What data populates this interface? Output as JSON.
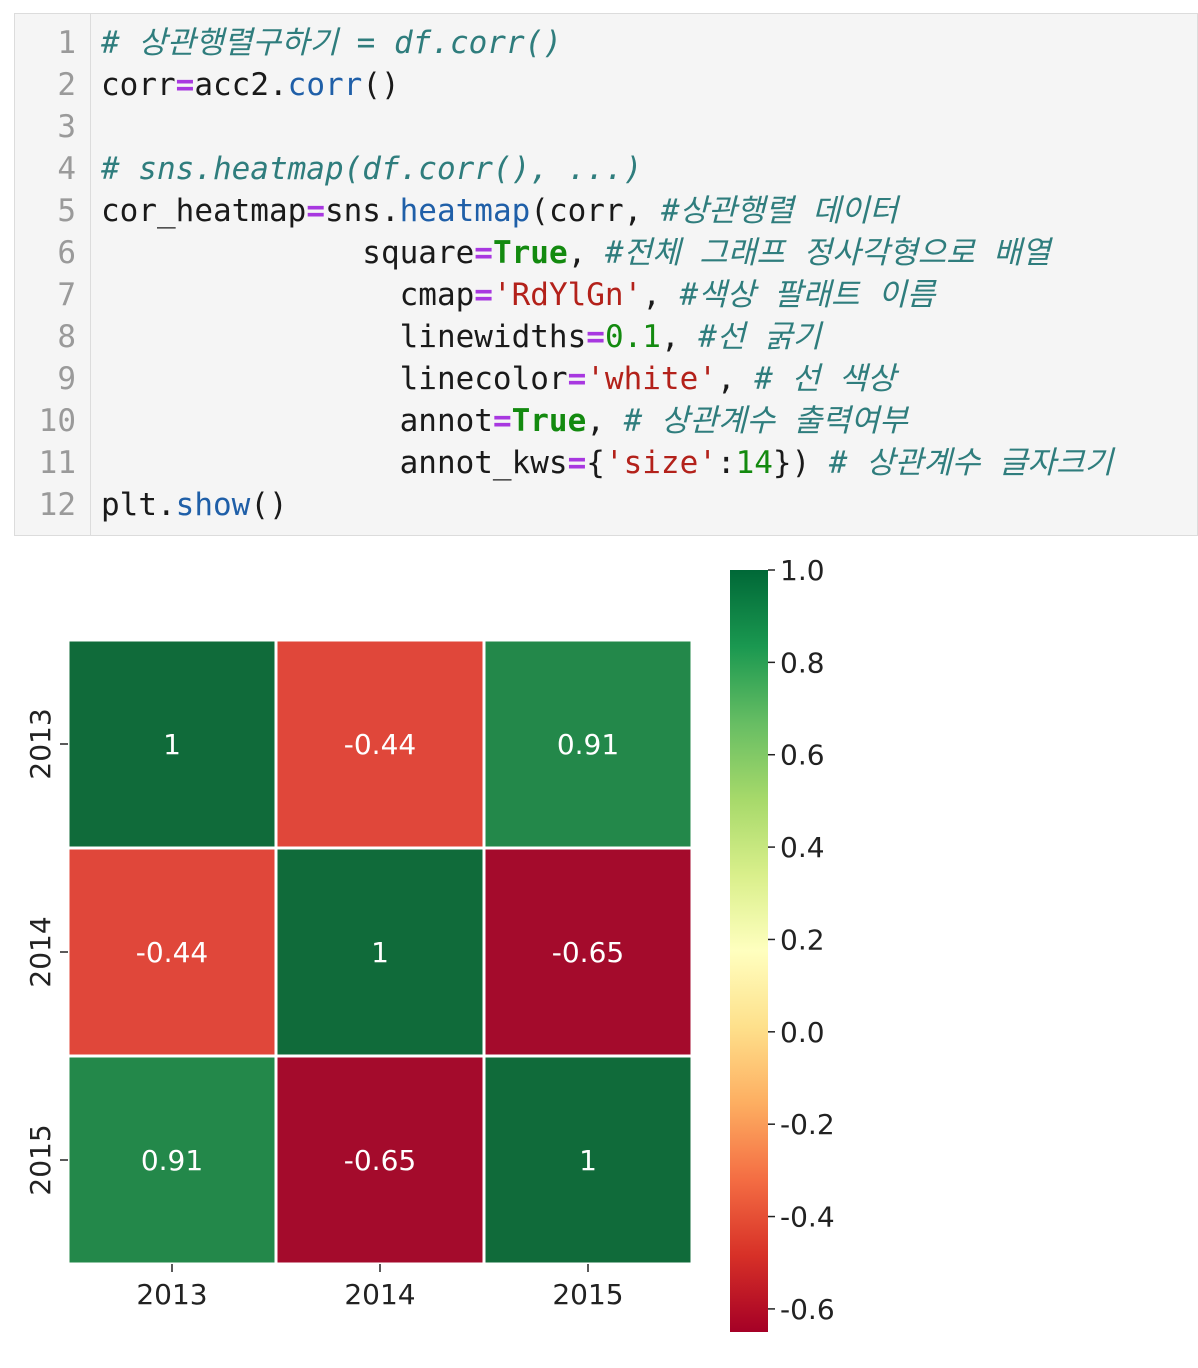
{
  "code_cell": {
    "line_numbers": [
      "1",
      "2",
      "3",
      "4",
      "5",
      "6",
      "7",
      "8",
      "9",
      "10",
      "11",
      "12"
    ],
    "lines": [
      [
        {
          "t": "# 상관행렬구하기 = df.corr()",
          "c": "cmt"
        }
      ],
      [
        {
          "t": "corr",
          "c": ""
        },
        {
          "t": "=",
          "c": "op"
        },
        {
          "t": "acc2.",
          "c": ""
        },
        {
          "t": "corr",
          "c": "fn"
        },
        {
          "t": "()",
          "c": ""
        }
      ],
      [],
      [
        {
          "t": "# sns.heatmap(df.corr(), ...)",
          "c": "cmt"
        }
      ],
      [
        {
          "t": "cor_heatmap",
          "c": ""
        },
        {
          "t": "=",
          "c": "op"
        },
        {
          "t": "sns.",
          "c": ""
        },
        {
          "t": "heatmap",
          "c": "fn"
        },
        {
          "t": "(corr, ",
          "c": ""
        },
        {
          "t": "#상관행렬 데이터",
          "c": "cmt"
        }
      ],
      [
        {
          "t": "              square",
          "c": ""
        },
        {
          "t": "=",
          "c": "op"
        },
        {
          "t": "True",
          "c": "kw"
        },
        {
          "t": ", ",
          "c": ""
        },
        {
          "t": "#전체 그래프 정사각형으로 배열",
          "c": "cmt"
        }
      ],
      [
        {
          "t": "                cmap",
          "c": ""
        },
        {
          "t": "=",
          "c": "op"
        },
        {
          "t": "'RdYlGn'",
          "c": "str"
        },
        {
          "t": ", ",
          "c": ""
        },
        {
          "t": "#색상 팔래트 이름",
          "c": "cmt"
        }
      ],
      [
        {
          "t": "                linewidths",
          "c": ""
        },
        {
          "t": "=",
          "c": "op"
        },
        {
          "t": "0.1",
          "c": "num"
        },
        {
          "t": ", ",
          "c": ""
        },
        {
          "t": "#선 굵기",
          "c": "cmt"
        }
      ],
      [
        {
          "t": "                linecolor",
          "c": ""
        },
        {
          "t": "=",
          "c": "op"
        },
        {
          "t": "'white'",
          "c": "str"
        },
        {
          "t": ", ",
          "c": ""
        },
        {
          "t": "# 선 색상",
          "c": "cmt"
        }
      ],
      [
        {
          "t": "                annot",
          "c": ""
        },
        {
          "t": "=",
          "c": "op"
        },
        {
          "t": "True",
          "c": "kw"
        },
        {
          "t": ", ",
          "c": ""
        },
        {
          "t": "# 상관계수 출력여부",
          "c": "cmt"
        }
      ],
      [
        {
          "t": "                annot_kws",
          "c": ""
        },
        {
          "t": "=",
          "c": "op"
        },
        {
          "t": "{",
          "c": ""
        },
        {
          "t": "'size'",
          "c": "str"
        },
        {
          "t": ":",
          "c": ""
        },
        {
          "t": "14",
          "c": "num"
        },
        {
          "t": "}) ",
          "c": ""
        },
        {
          "t": "# 상관계수 글자크기",
          "c": "cmt"
        }
      ],
      [
        {
          "t": "plt.",
          "c": ""
        },
        {
          "t": "show",
          "c": "fn"
        },
        {
          "t": "()",
          "c": ""
        }
      ]
    ]
  },
  "chart_data": {
    "type": "heatmap",
    "x_categories": [
      "2013",
      "2014",
      "2015"
    ],
    "y_categories": [
      "2013",
      "2014",
      "2015"
    ],
    "values": [
      [
        1,
        -0.44,
        0.91
      ],
      [
        -0.44,
        1,
        -0.65
      ],
      [
        0.91,
        -0.65,
        1
      ]
    ],
    "annotations": [
      [
        "1",
        "-0.44",
        "0.91"
      ],
      [
        "-0.44",
        "1",
        "-0.65"
      ],
      [
        "0.91",
        "-0.65",
        "1"
      ]
    ],
    "colormap": "RdYlGn",
    "cell_colors": [
      [
        "#106b3a",
        "#e0473a",
        "#23884a"
      ],
      [
        "#e0473a",
        "#106b3a",
        "#a40b2c"
      ],
      [
        "#23884a",
        "#a40b2c",
        "#106b3a"
      ]
    ],
    "colorbar": {
      "vmin": -0.65,
      "vmax": 1.0,
      "ticks": [
        1.0,
        0.8,
        0.6,
        0.4,
        0.2,
        0.0,
        -0.2,
        -0.4,
        -0.6
      ],
      "tick_labels": [
        "1.0",
        "0.8",
        "0.6",
        "0.4",
        "0.2",
        "0.0",
        "-0.2",
        "-0.4",
        "-0.6"
      ],
      "gradient": [
        "#a50026",
        "#d73027",
        "#f46d43",
        "#fdae61",
        "#fee08b",
        "#ffffbf",
        "#d9ef8b",
        "#a6d96a",
        "#66bd63",
        "#1a9850",
        "#006837"
      ]
    },
    "title": "",
    "xlabel": "",
    "ylabel": ""
  }
}
